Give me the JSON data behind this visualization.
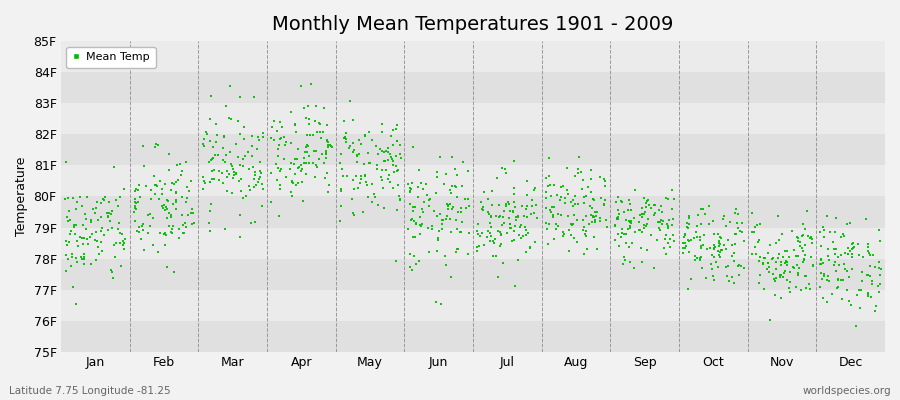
{
  "title": "Monthly Mean Temperatures 1901 - 2009",
  "ylabel": "Temperature",
  "ylim": [
    75,
    85
  ],
  "ytick_labels": [
    "75F",
    "76F",
    "77F",
    "78F",
    "79F",
    "80F",
    "81F",
    "82F",
    "83F",
    "84F",
    "85F"
  ],
  "ytick_values": [
    75,
    76,
    77,
    78,
    79,
    80,
    81,
    82,
    83,
    84,
    85
  ],
  "months": [
    "Jan",
    "Feb",
    "Mar",
    "Apr",
    "May",
    "Jun",
    "Jul",
    "Aug",
    "Sep",
    "Oct",
    "Nov",
    "Dec"
  ],
  "month_centers": [
    0.5,
    1.5,
    2.5,
    3.5,
    4.5,
    5.5,
    6.5,
    7.5,
    8.5,
    9.5,
    10.5,
    11.5
  ],
  "dot_color": "#00bb00",
  "background_color": "#f2f2f2",
  "plot_bg_light": "#ebebeb",
  "plot_bg_dark": "#e0e0e0",
  "vline_color": "#999999",
  "title_fontsize": 14,
  "axis_fontsize": 9,
  "legend_label": "Mean Temp",
  "subtitle_left": "Latitude 7.75 Longitude -81.25",
  "subtitle_right": "worldspecies.org",
  "n_years": 109,
  "seed": 42,
  "monthly_means": [
    78.8,
    79.6,
    81.1,
    81.5,
    81.0,
    79.3,
    79.3,
    79.5,
    79.1,
    78.5,
    78.0,
    77.8
  ],
  "monthly_stds": [
    0.85,
    0.95,
    0.88,
    0.8,
    0.88,
    0.95,
    0.75,
    0.68,
    0.62,
    0.68,
    0.7,
    0.75
  ]
}
